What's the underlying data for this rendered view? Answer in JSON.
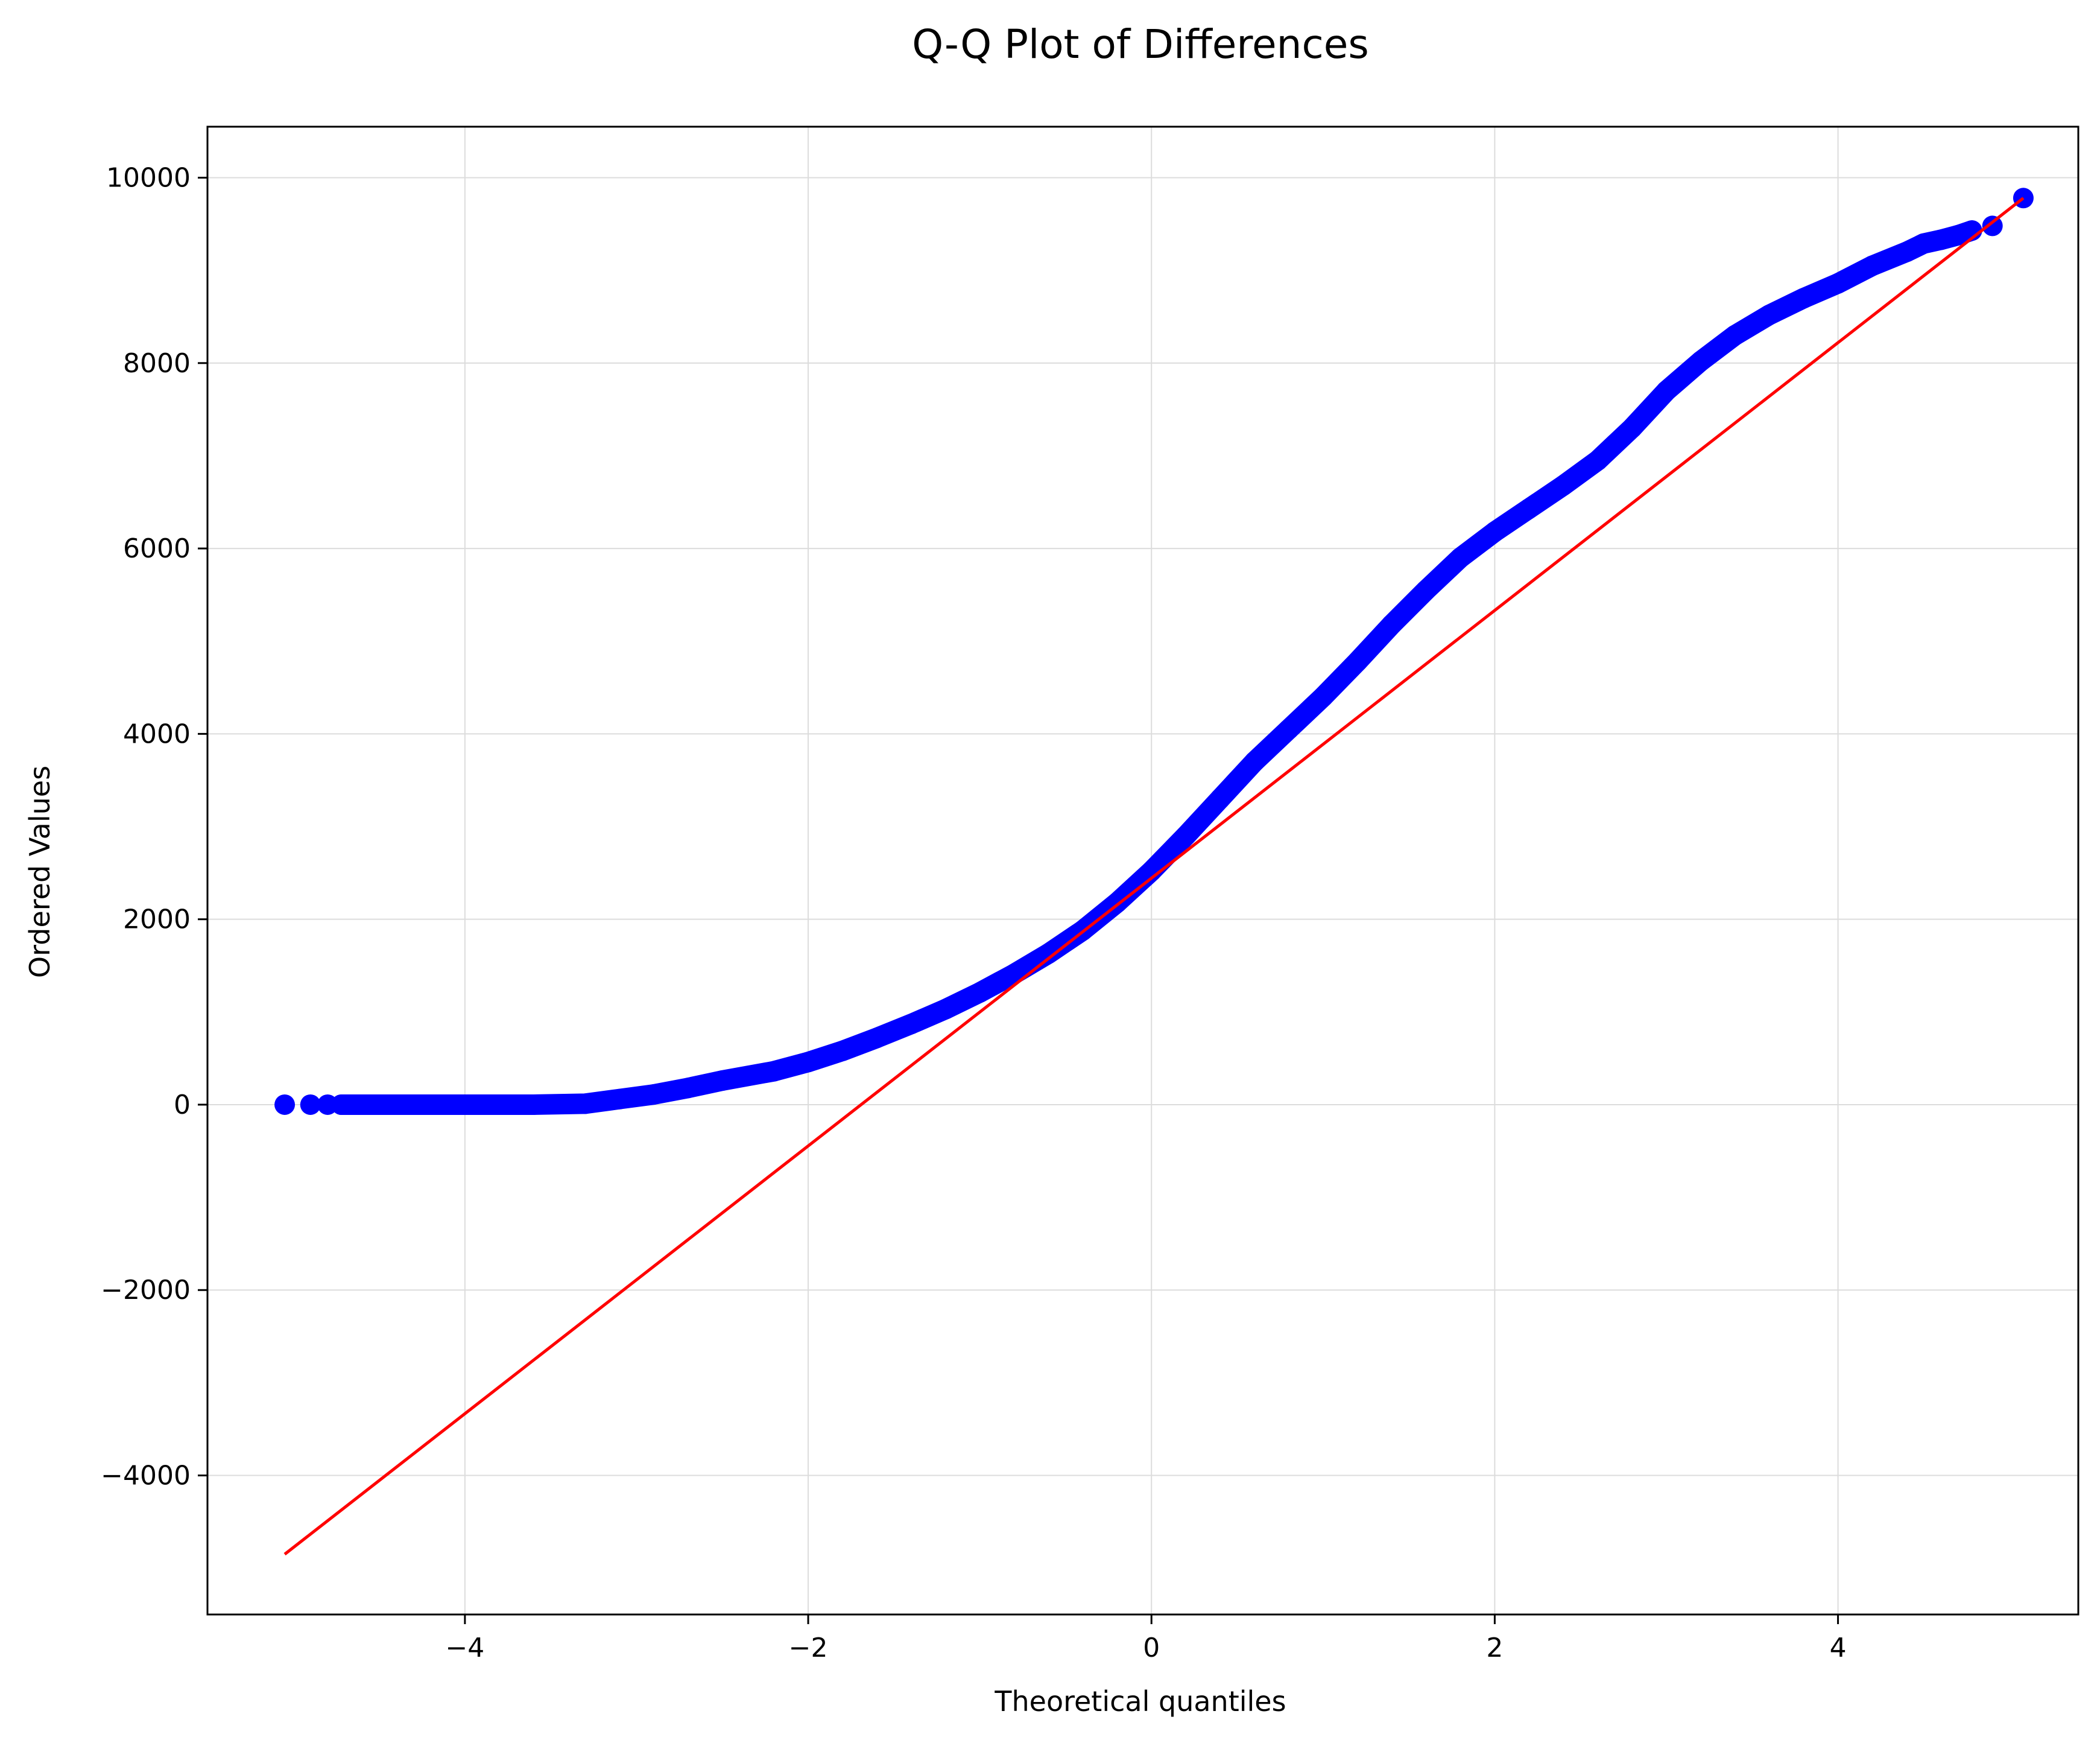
{
  "chart_data": {
    "type": "scatter",
    "title": "Q-Q Plot of Differences",
    "xlabel": "Theoretical quantiles",
    "ylabel": "Ordered Values",
    "xlim": [
      -5.5,
      5.4
    ],
    "ylim": [
      -5500,
      10550
    ],
    "xticks": [
      -4,
      -2,
      0,
      2,
      4
    ],
    "xtick_labels": [
      "−4",
      "−2",
      "0",
      "2",
      "4"
    ],
    "yticks": [
      -4000,
      -2000,
      0,
      2000,
      4000,
      6000,
      8000,
      10000
    ],
    "ytick_labels": [
      "−4000",
      "−2000",
      "0",
      "2000",
      "4000",
      "6000",
      "8000",
      "10000"
    ],
    "grid": true,
    "series": [
      {
        "kind": "points",
        "color": "#0000ff",
        "x": [
          -5.05,
          -4.9,
          -4.8,
          -4.72,
          -4.6,
          -4.4,
          -4.0,
          -3.6,
          -3.3,
          -3.1,
          -2.9,
          -2.7,
          -2.5,
          -2.2,
          -2.0,
          -1.8,
          -1.6,
          -1.4,
          -1.2,
          -1.0,
          -0.8,
          -0.6,
          -0.4,
          -0.2,
          0.0,
          0.2,
          0.4,
          0.6,
          0.8,
          1.0,
          1.2,
          1.4,
          1.6,
          1.8,
          2.0,
          2.2,
          2.4,
          2.6,
          2.8,
          3.0,
          3.2,
          3.4,
          3.6,
          3.8,
          4.0,
          4.2,
          4.4,
          4.5,
          4.6,
          4.7,
          4.78,
          4.9,
          5.08
        ],
        "y": [
          0,
          0,
          0,
          0,
          0,
          0,
          0,
          0,
          10,
          60,
          110,
          180,
          260,
          360,
          460,
          580,
          720,
          870,
          1030,
          1210,
          1410,
          1630,
          1880,
          2180,
          2520,
          2900,
          3300,
          3700,
          4050,
          4400,
          4780,
          5180,
          5550,
          5900,
          6180,
          6430,
          6680,
          6950,
          7300,
          7700,
          8020,
          8300,
          8520,
          8700,
          8860,
          9050,
          9200,
          9290,
          9330,
          9380,
          9430,
          9480,
          9780
        ]
      },
      {
        "kind": "fit-line",
        "color": "#ff0000",
        "x": [
          -5.05,
          5.08
        ],
        "y": [
          -4850,
          9780
        ]
      }
    ]
  }
}
